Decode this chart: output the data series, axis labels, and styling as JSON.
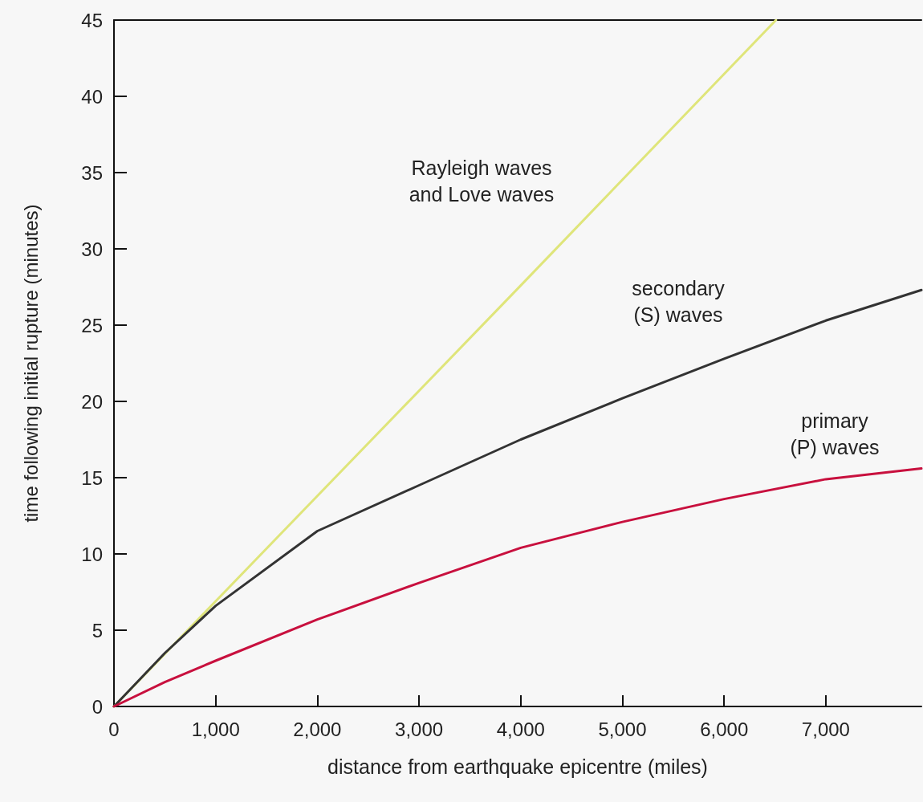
{
  "chart_data": {
    "type": "line",
    "xlabel": "distance from earthquake epicentre (miles)",
    "ylabel": "time following initial rupture (minutes)",
    "xlim": [
      0,
      7940
    ],
    "ylim": [
      0,
      45
    ],
    "xticks": [
      0,
      {
        "value": 1000,
        "label": "1,000"
      },
      {
        "value": 2000,
        "label": "2,000"
      },
      {
        "value": 3000,
        "label": "3,000"
      },
      {
        "value": 4000,
        "label": "4,000"
      },
      {
        "value": 5000,
        "label": "5,000"
      },
      {
        "value": 6000,
        "label": "6,000"
      },
      {
        "value": 7000,
        "label": "7,000"
      }
    ],
    "yticks": [
      0,
      5,
      10,
      15,
      20,
      25,
      30,
      35,
      40,
      45
    ],
    "grid": false,
    "marker": "none",
    "line_style": "solid",
    "series": [
      {
        "color": "#dfe57a",
        "x": [
          0,
          2000,
          4000,
          6510
        ],
        "values": [
          0,
          13.8,
          27.6,
          45
        ]
      },
      {
        "color": "#333333",
        "x": [
          0,
          500,
          1000,
          2000,
          3000,
          4000,
          5000,
          6000,
          7000,
          7940
        ],
        "values": [
          0,
          3.5,
          6.6,
          11.5,
          14.5,
          17.5,
          20.2,
          22.8,
          25.3,
          27.3
        ]
      },
      {
        "color": "#c8103e",
        "x": [
          0,
          500,
          1000,
          2000,
          3000,
          4000,
          5000,
          6000,
          7000,
          7940
        ],
        "values": [
          0,
          1.6,
          3.0,
          5.7,
          8.1,
          10.4,
          12.1,
          13.6,
          14.9,
          15.6
        ]
      }
    ],
    "annotations": [
      "Rayleigh waves\nand Love waves",
      "secondary\n(S) waves",
      "primary\n(P) waves"
    ]
  }
}
